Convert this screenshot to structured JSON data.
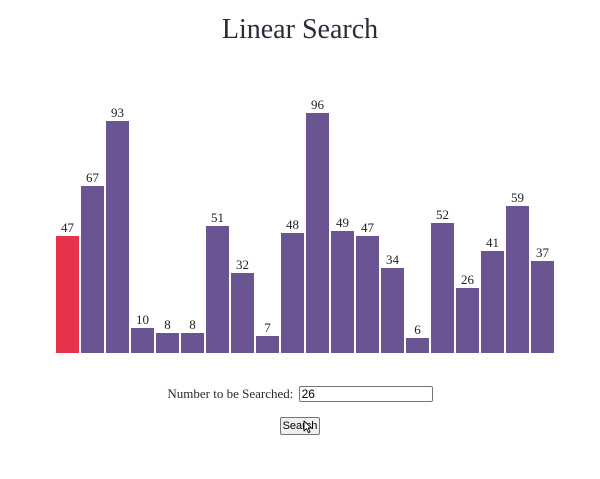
{
  "title": "Linear Search",
  "chart_data": {
    "type": "bar",
    "values": [
      47,
      67,
      93,
      10,
      8,
      8,
      51,
      32,
      7,
      48,
      96,
      49,
      47,
      34,
      6,
      52,
      26,
      41,
      59,
      37
    ],
    "highlight_index": 0,
    "colors": {
      "bar": "#6a5592",
      "highlight": "#e8324b"
    }
  },
  "search": {
    "label": "Number to be Searched:",
    "value": "26",
    "button_label": "Search"
  }
}
